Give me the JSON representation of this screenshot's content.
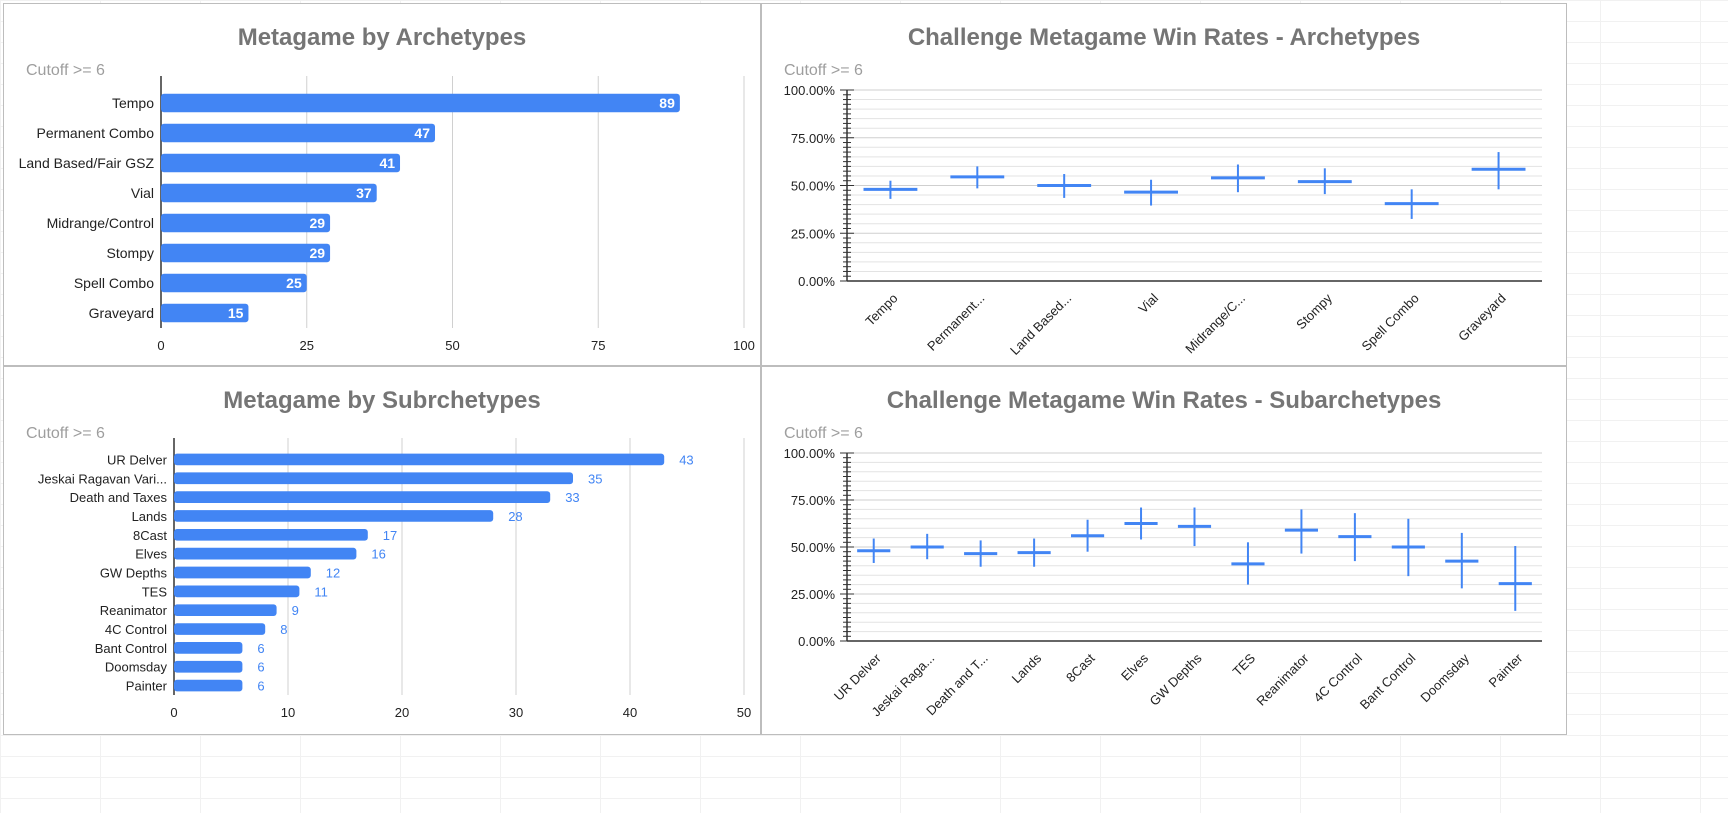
{
  "colors": {
    "bar": "#4285f4",
    "grid": "#d0d0d0",
    "axis": "#333333",
    "text": "#222222",
    "label_blue": "#4285f4",
    "title": "#757575",
    "subtitle": "#9e9e9e"
  },
  "chart_data": [
    {
      "type": "bar",
      "orientation": "horizontal",
      "title": "Metagame by Archetypes",
      "subtitle": "Cutoff >= 6",
      "categories": [
        "Tempo",
        "Permanent Combo",
        "Land Based/Fair GSZ",
        "Vial",
        "Midrange/Control",
        "Stompy",
        "Spell Combo",
        "Graveyard"
      ],
      "values": [
        89,
        47,
        41,
        37,
        29,
        29,
        25,
        15
      ],
      "xlim": [
        0,
        100
      ],
      "xticks": [
        "0",
        "25",
        "50",
        "75",
        "100"
      ],
      "data_labels": "inside"
    },
    {
      "type": "candlestick",
      "title": "Challenge Metagame Win Rates - Archetypes",
      "subtitle": "Cutoff >= 6",
      "categories": [
        "Tempo",
        "Permanent...",
        "Land Based...",
        "Vial",
        "Midrange/C...",
        "Stompy",
        "Spell Combo",
        "Graveyard"
      ],
      "mid": [
        48,
        54.5,
        50,
        46.5,
        54,
        52,
        40.5,
        58.5
      ],
      "low": [
        43,
        48.5,
        43.5,
        39.5,
        46.5,
        45.5,
        32.5,
        48
      ],
      "high": [
        52.5,
        60,
        56,
        53,
        61,
        59,
        48,
        67.5
      ],
      "ylim": [
        0,
        100
      ],
      "yticks": [
        "0.00%",
        "25.00%",
        "50.00%",
        "75.00%",
        "100.00%"
      ]
    },
    {
      "type": "bar",
      "orientation": "horizontal",
      "title": "Metagame by Subrchetypes",
      "subtitle": "Cutoff >= 6",
      "categories": [
        "UR Delver",
        "Jeskai Ragavan Vari...",
        "Death and Taxes",
        "Lands",
        "8Cast",
        "Elves",
        "GW Depths",
        "TES",
        "Reanimator",
        "4C Control",
        "Bant Control",
        "Doomsday",
        "Painter"
      ],
      "values": [
        43,
        35,
        33,
        28,
        17,
        16,
        12,
        11,
        9,
        8,
        6,
        6,
        6
      ],
      "xlim": [
        0,
        50
      ],
      "xticks": [
        "0",
        "10",
        "20",
        "30",
        "40",
        "50"
      ],
      "data_labels": "outside"
    },
    {
      "type": "candlestick",
      "title": "Challenge Metagame Win Rates - Subarchetypes",
      "subtitle": "Cutoff >= 6",
      "categories": [
        "UR Delver",
        "Jeskai Raga...",
        "Death and T...",
        "Lands",
        "8Cast",
        "Elves",
        "GW Depths",
        "TES",
        "Reanimator",
        "4C Control",
        "Bant Control",
        "Doomsday",
        "Painter"
      ],
      "mid": [
        48,
        50,
        46.5,
        47,
        56,
        62.5,
        61,
        41,
        59,
        55.5,
        50,
        42.5,
        30.5
      ],
      "low": [
        41.5,
        43.5,
        39.5,
        39.5,
        47.5,
        54,
        50.5,
        30,
        46.5,
        42.5,
        34.5,
        28,
        16
      ],
      "high": [
        54.5,
        57,
        53.5,
        54.5,
        64.5,
        71,
        71,
        52.5,
        70,
        68,
        65,
        57.5,
        50.5
      ],
      "ylim": [
        0,
        100
      ],
      "yticks": [
        "0.00%",
        "25.00%",
        "50.00%",
        "75.00%",
        "100.00%"
      ]
    }
  ]
}
